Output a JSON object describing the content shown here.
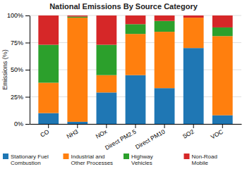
{
  "chart_data": {
    "type": "bar",
    "title": "National Emissions By Source Category",
    "ylabel": "Emissions (%)",
    "categories": [
      "CO",
      "NH3",
      "NOx",
      "Direct PM2.5",
      "Direct PM10",
      "SO2",
      "VOC"
    ],
    "series": [
      {
        "name": "Stationary Fuel\nCombustion",
        "values": [
          10,
          2,
          29,
          45,
          33,
          70,
          8
        ]
      },
      {
        "name": "Industrial and\nOther Processes",
        "values": [
          28,
          96,
          16,
          38,
          52,
          28,
          73
        ]
      },
      {
        "name": "Highway\nVehicles",
        "values": [
          35,
          1,
          28,
          9,
          10,
          0,
          8
        ]
      },
      {
        "name": "Non-Road\nMobile",
        "values": [
          27,
          1,
          27,
          8,
          5,
          2,
          11
        ]
      }
    ],
    "stacked": true,
    "ylim": [
      0,
      100
    ],
    "yticks": [
      {
        "value": 0,
        "label": "0%"
      },
      {
        "value": 25,
        "label": "25%"
      },
      {
        "value": 50,
        "label": "50%"
      },
      {
        "value": 75,
        "label": "75%"
      },
      {
        "value": 100,
        "label": "100%"
      }
    ],
    "grid": true,
    "legend": "bottom"
  }
}
